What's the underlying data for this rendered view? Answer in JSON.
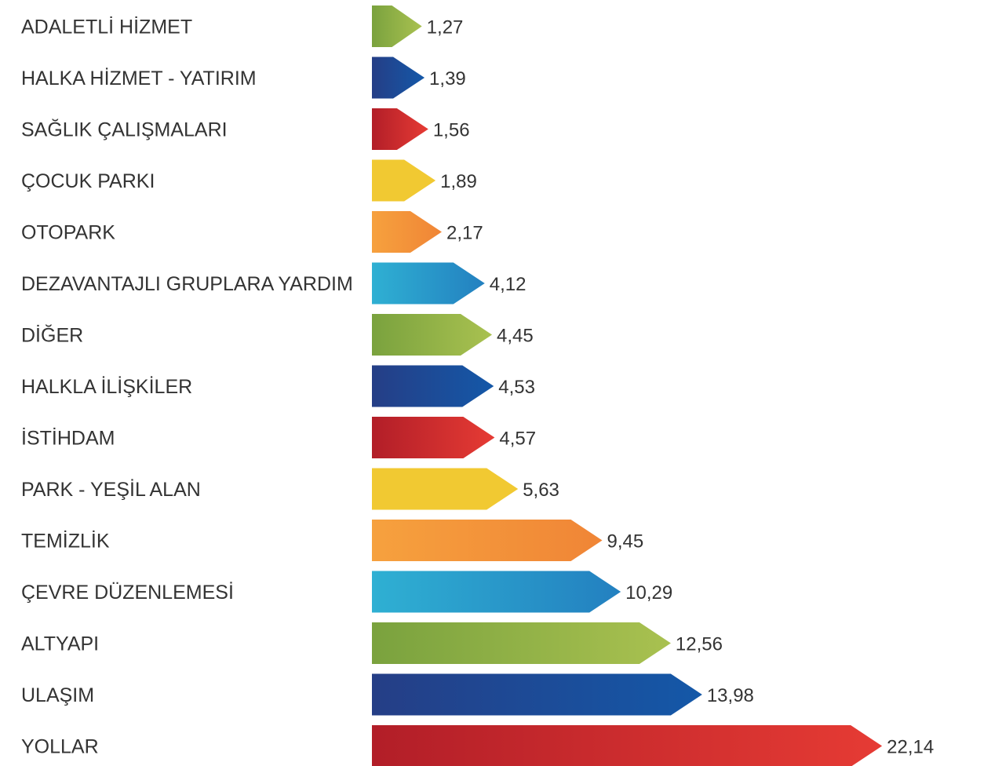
{
  "chart_data": {
    "type": "bar",
    "orientation": "horizontal",
    "categories": [
      "ADALETLİ HİZMET",
      "HALKA HİZMET - YATIRIM",
      "SAĞLIK ÇALIŞMALARI",
      "ÇOCUK PARKI",
      "OTOPARK",
      "DEZAVANTAJLI GRUPLARA YARDIM",
      "DİĞER",
      "HALKLA İLİŞKİLER",
      "İSTİHDAM",
      "PARK - YEŞİL ALAN",
      "TEMİZLİK",
      "ÇEVRE DÜZENLEMESİ",
      "ALTYAPI",
      "ULAŞIM",
      "YOLLAR"
    ],
    "values": [
      1.27,
      1.39,
      1.56,
      1.89,
      2.17,
      4.12,
      4.45,
      4.53,
      4.57,
      5.63,
      9.45,
      10.29,
      12.56,
      13.98,
      22.14
    ],
    "value_labels": [
      "1,27",
      "1,39",
      "1,56",
      "1,89",
      "2,17",
      "4,12",
      "4,45",
      "4,53",
      "4,57",
      "5,63",
      "9,45",
      "10,29",
      "12,56",
      "13,98",
      "22,14"
    ],
    "bar_colors": [
      "green",
      "blue",
      "red",
      "yellow",
      "orange",
      "cyan",
      "green",
      "blue",
      "red",
      "yellow",
      "orange",
      "cyan",
      "green",
      "blue",
      "red"
    ],
    "grid": false,
    "legend": "none"
  },
  "palette": {
    "green": [
      "#7aa23e",
      "#a9c150"
    ],
    "blue": [
      "#253e86",
      "#1458a8"
    ],
    "red": [
      "#b21e28",
      "#e63b34"
    ],
    "yellow": [
      "#f1c932",
      "#f1c932"
    ],
    "orange": [
      "#f6a13e",
      "#f08536"
    ],
    "cyan": [
      "#2fb0d3",
      "#2380c0"
    ]
  }
}
